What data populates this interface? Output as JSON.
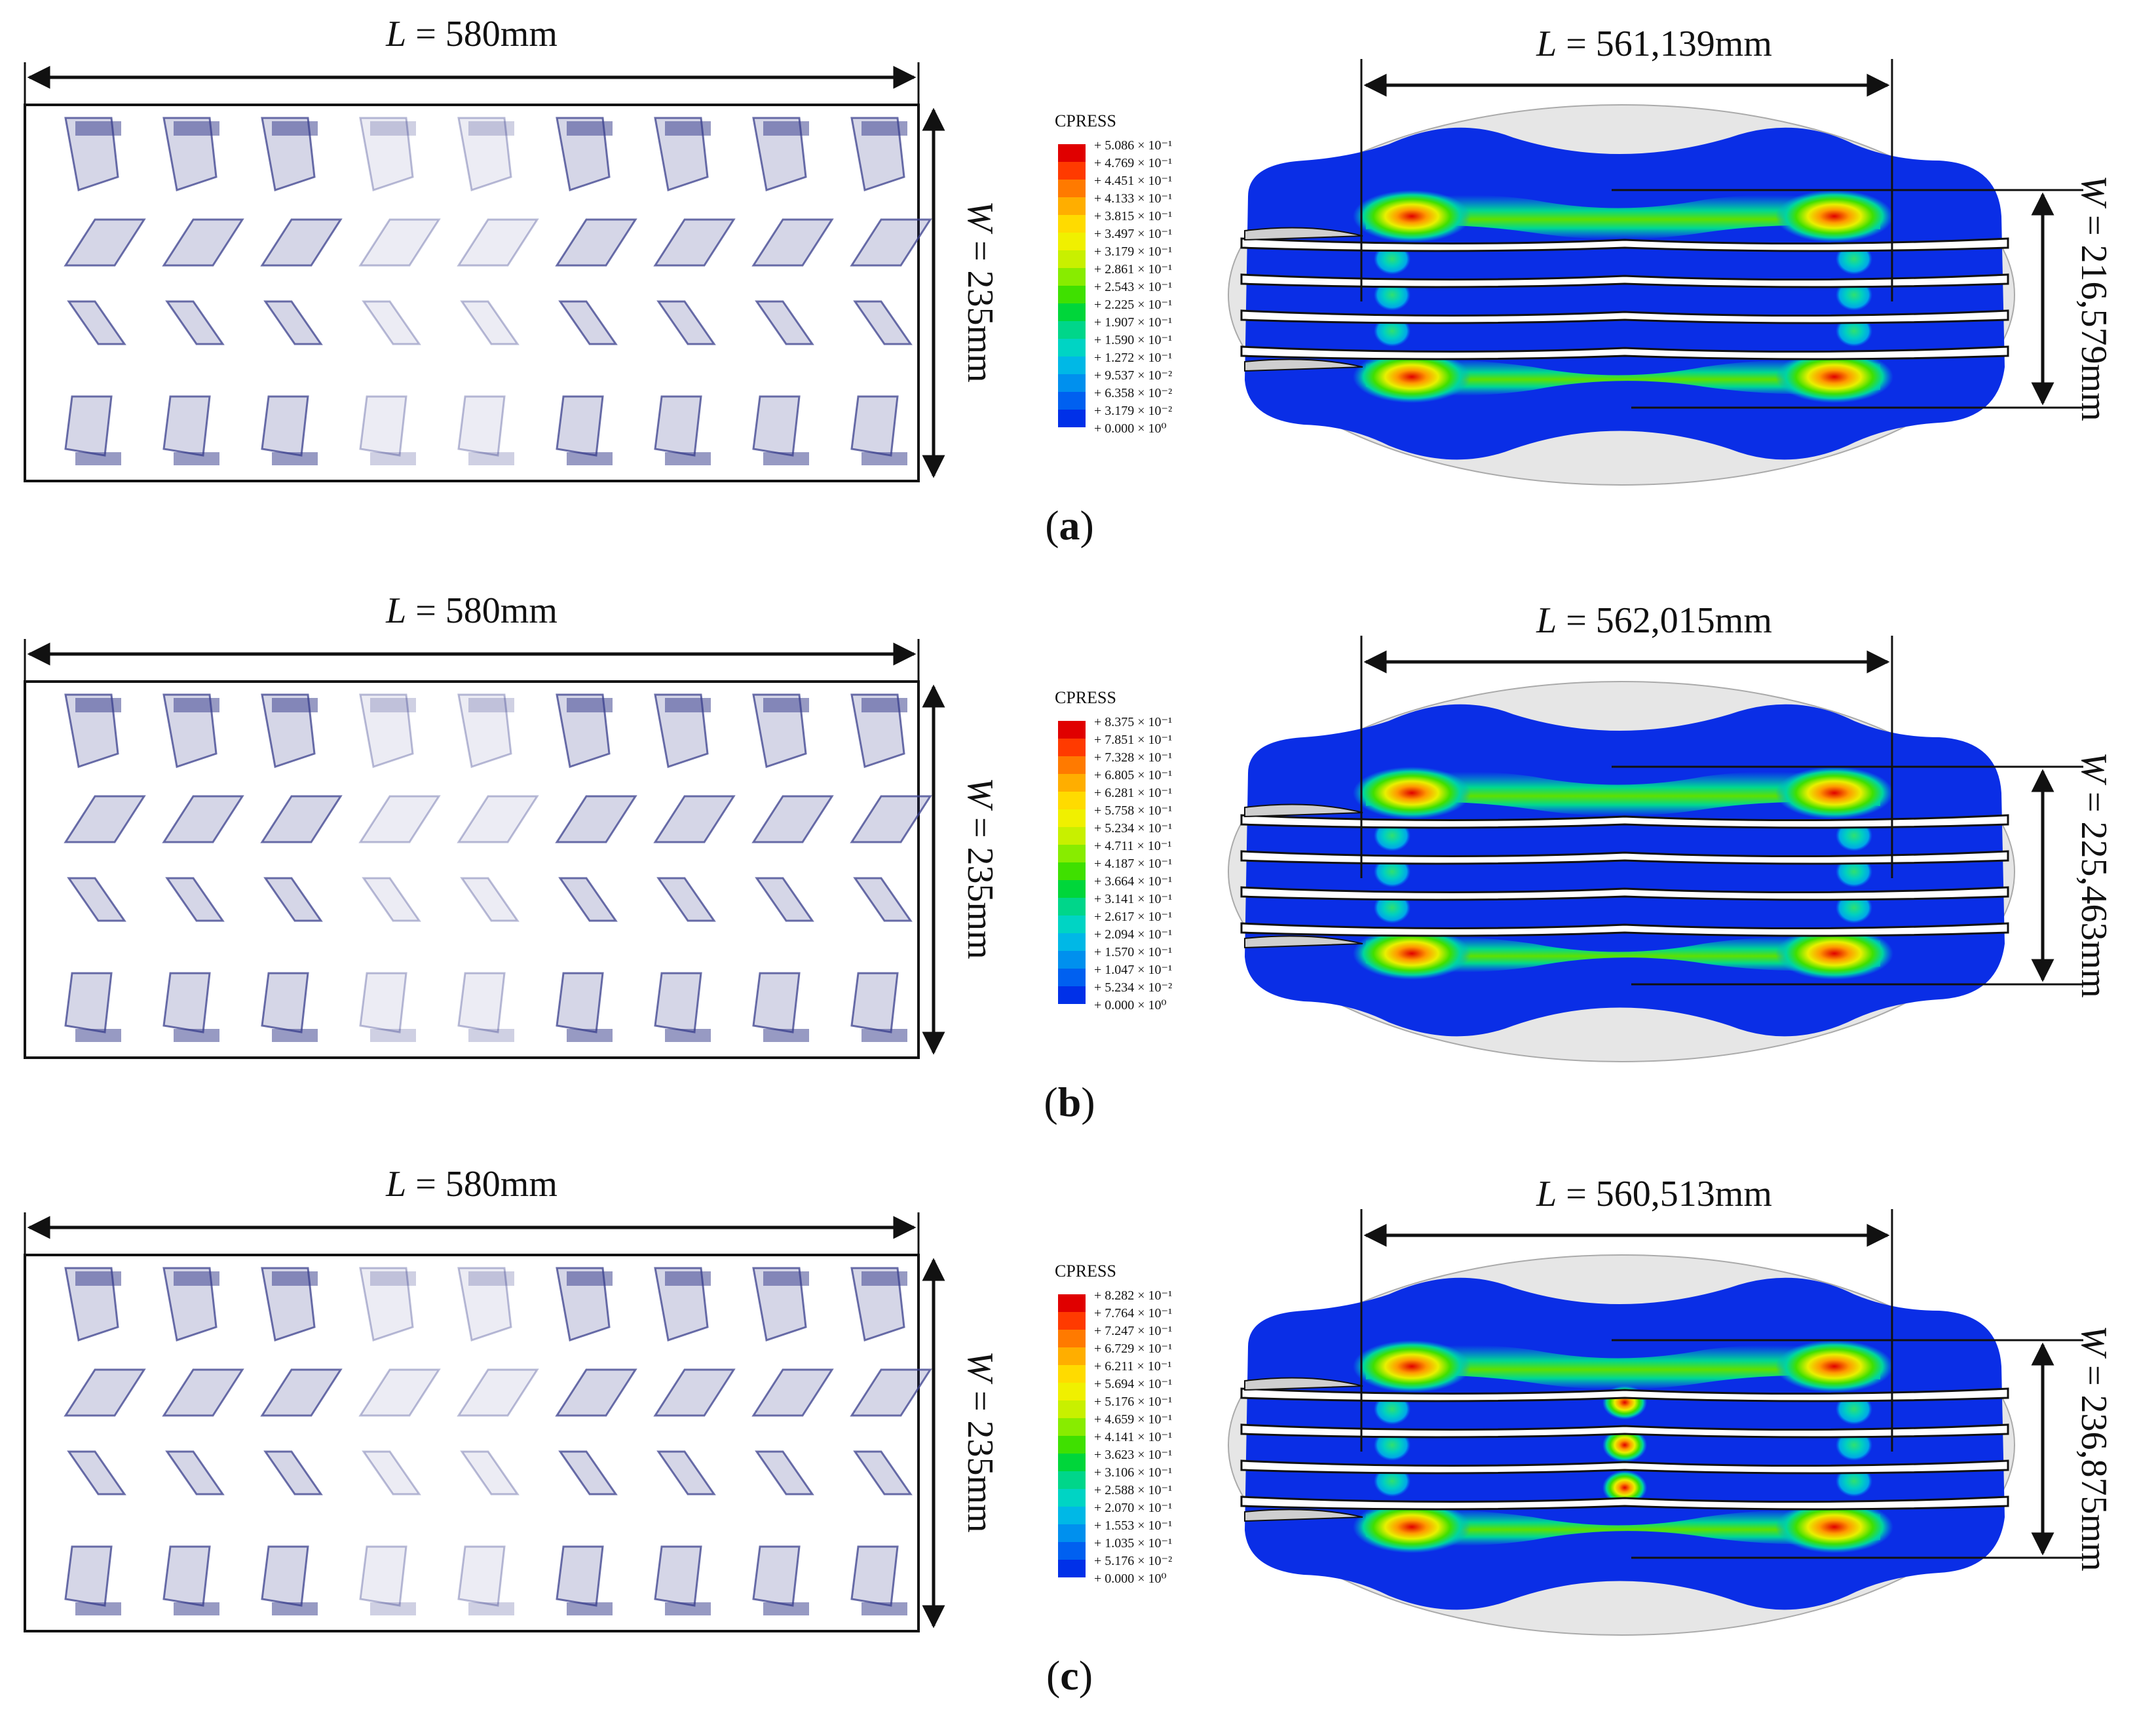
{
  "figure": {
    "panels": [
      {
        "caption_letter": "a",
        "footprint": {
          "length_label": "L",
          "length_value": " = 580mm",
          "width_label": "W",
          "width_value": " = 235mm"
        },
        "fem": {
          "length_label": "L",
          "length_value": " = 561,139mm",
          "width_label": "W",
          "width_value": " = 216,579mm",
          "legend_title": "CPRESS",
          "legend_values": [
            "+ 5.086 × 10⁻¹",
            "+ 4.769 × 10⁻¹",
            "+ 4.451 × 10⁻¹",
            "+ 4.133 × 10⁻¹",
            "+ 3.815 × 10⁻¹",
            "+ 3.497 × 10⁻¹",
            "+ 3.179 × 10⁻¹",
            "+ 2.861 × 10⁻¹",
            "+ 2.543 × 10⁻¹",
            "+ 2.225 × 10⁻¹",
            "+ 1.907 × 10⁻¹",
            "+ 1.590 × 10⁻¹",
            "+ 1.272 × 10⁻¹",
            "+ 9.537 × 10⁻²",
            "+ 6.358 × 10⁻²",
            "+ 3.179 × 10⁻²",
            "+ 0.000 × 10⁰"
          ]
        }
      },
      {
        "caption_letter": "b",
        "footprint": {
          "length_label": "L",
          "length_value": " = 580mm",
          "width_label": "W",
          "width_value": " = 235mm"
        },
        "fem": {
          "length_label": "L",
          "length_value": " = 562,015mm",
          "width_label": "W",
          "width_value": " = 225,463mm",
          "legend_title": "CPRESS",
          "legend_values": [
            "+ 8.375 × 10⁻¹",
            "+ 7.851 × 10⁻¹",
            "+ 7.328 × 10⁻¹",
            "+ 6.805 × 10⁻¹",
            "+ 6.281 × 10⁻¹",
            "+ 5.758 × 10⁻¹",
            "+ 5.234 × 10⁻¹",
            "+ 4.711 × 10⁻¹",
            "+ 4.187 × 10⁻¹",
            "+ 3.664 × 10⁻¹",
            "+ 3.141 × 10⁻¹",
            "+ 2.617 × 10⁻¹",
            "+ 2.094 × 10⁻¹",
            "+ 1.570 × 10⁻¹",
            "+ 1.047 × 10⁻¹",
            "+ 5.234 × 10⁻²",
            "+ 0.000 × 10⁰"
          ]
        }
      },
      {
        "caption_letter": "c",
        "footprint": {
          "length_label": "L",
          "length_value": " = 580mm",
          "width_label": "W",
          "width_value": " = 235mm"
        },
        "fem": {
          "length_label": "L",
          "length_value": " = 560,513mm",
          "width_label": "W",
          "width_value": " = 236,875mm",
          "legend_title": "CPRESS",
          "legend_values": [
            "+ 8.282 × 10⁻¹",
            "+ 7.764 × 10⁻¹",
            "+ 7.247 × 10⁻¹",
            "+ 6.729 × 10⁻¹",
            "+ 6.211 × 10⁻¹",
            "+ 5.694 × 10⁻¹",
            "+ 5.176 × 10⁻¹",
            "+ 4.659 × 10⁻¹",
            "+ 4.141 × 10⁻¹",
            "+ 3.623 × 10⁻¹",
            "+ 3.106 × 10⁻¹",
            "+ 2.588 × 10⁻¹",
            "+ 2.070 × 10⁻¹",
            "+ 1.553 × 10⁻¹",
            "+ 1.035 × 10⁻¹",
            "+ 5.176 × 10⁻²",
            "+ 0.000 × 10⁰"
          ]
        }
      }
    ],
    "colors": {
      "legend_scale": [
        "#e00000",
        "#ff3a00",
        "#ff7a00",
        "#ffae00",
        "#ffdb00",
        "#f0f000",
        "#c8f000",
        "#88ec00",
        "#3fe000",
        "#00d63a",
        "#00d68a",
        "#00d4c4",
        "#00b8e6",
        "#0090ee",
        "#0060f0",
        "#0030e8",
        "#0000e0"
      ],
      "tread_ink": "#3a3f8c",
      "tire_blue": "#0a2ee6"
    }
  }
}
